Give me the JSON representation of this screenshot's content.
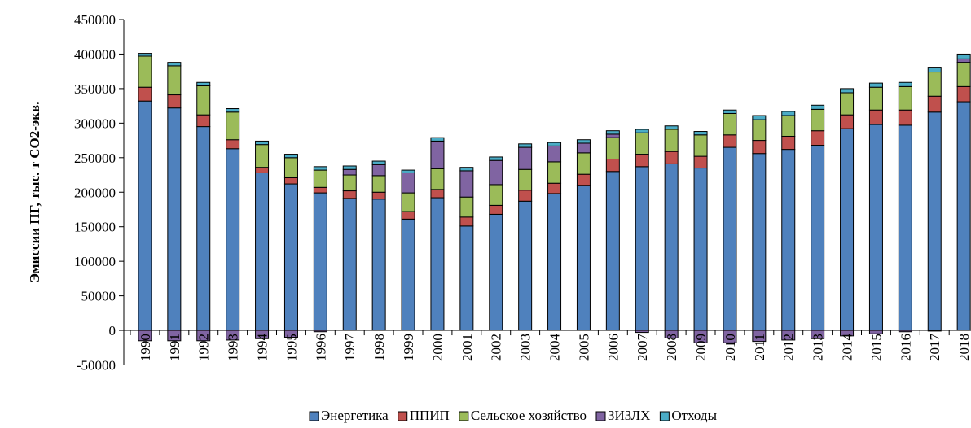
{
  "chart_data": {
    "type": "stacked_bar",
    "y_label": "Эмиссии ПГ, тыс. т СО2-экв.",
    "categories": [
      "1990",
      "1991",
      "1992",
      "1993",
      "1994",
      "1995",
      "1996",
      "1997",
      "1998",
      "1999",
      "2000",
      "2001",
      "2002",
      "2003",
      "2004",
      "2005",
      "2006",
      "2007",
      "2008",
      "2009",
      "2010",
      "2011",
      "2012",
      "2013",
      "2014",
      "2015",
      "2016",
      "2017",
      "2018"
    ],
    "series": [
      {
        "name": "Энергетика",
        "color": "#4f81bd",
        "values": [
          332000,
          322000,
          295000,
          263000,
          228000,
          212000,
          199000,
          191000,
          190000,
          161000,
          192000,
          151000,
          168000,
          187000,
          198000,
          210000,
          230000,
          237000,
          241000,
          235000,
          265000,
          256000,
          262000,
          268000,
          292000,
          298000,
          297000,
          316000,
          331000
        ]
      },
      {
        "name": "ППИП",
        "color": "#c0504d",
        "values": [
          20000,
          19000,
          17000,
          13000,
          8000,
          9000,
          8000,
          11000,
          10000,
          11000,
          12000,
          13000,
          13000,
          16000,
          15000,
          16000,
          18000,
          18000,
          18000,
          17000,
          18000,
          19000,
          19000,
          21000,
          20000,
          21000,
          22000,
          23000,
          22000
        ]
      },
      {
        "name": "Сельское хозяйство",
        "color": "#9bbb59",
        "values": [
          45000,
          42000,
          42000,
          40000,
          33000,
          29000,
          25000,
          23000,
          24000,
          27000,
          30000,
          29000,
          30000,
          30000,
          31000,
          31000,
          31000,
          31000,
          32000,
          31000,
          31000,
          30000,
          30000,
          31000,
          32000,
          33000,
          34000,
          35000,
          35000
        ]
      },
      {
        "name": "ЗИЗЛХ",
        "color": "#8064a2",
        "values": [
          -15000,
          -15000,
          -15000,
          -14000,
          -12000,
          -10000,
          -2000,
          8000,
          16000,
          29000,
          40000,
          38000,
          35000,
          32000,
          23000,
          14000,
          5000,
          -3000,
          -11000,
          -18000,
          -18000,
          -16000,
          -14000,
          -12000,
          -8000,
          -5000,
          -2000,
          -1000,
          5000
        ]
      },
      {
        "name": "Отходы",
        "color": "#4bacc6",
        "values": [
          4000,
          5000,
          5000,
          5000,
          5000,
          5000,
          5000,
          5000,
          5000,
          4000,
          5000,
          5000,
          5000,
          5000,
          5000,
          5000,
          5000,
          5000,
          5000,
          5000,
          5000,
          6000,
          6000,
          6000,
          6000,
          6000,
          6000,
          7000,
          7000
        ]
      }
    ],
    "ylim": [
      -50000,
      450000
    ],
    "yticks": [
      -50000,
      0,
      50000,
      100000,
      150000,
      200000,
      250000,
      300000,
      350000,
      400000,
      450000
    ],
    "legend": "bottom"
  }
}
